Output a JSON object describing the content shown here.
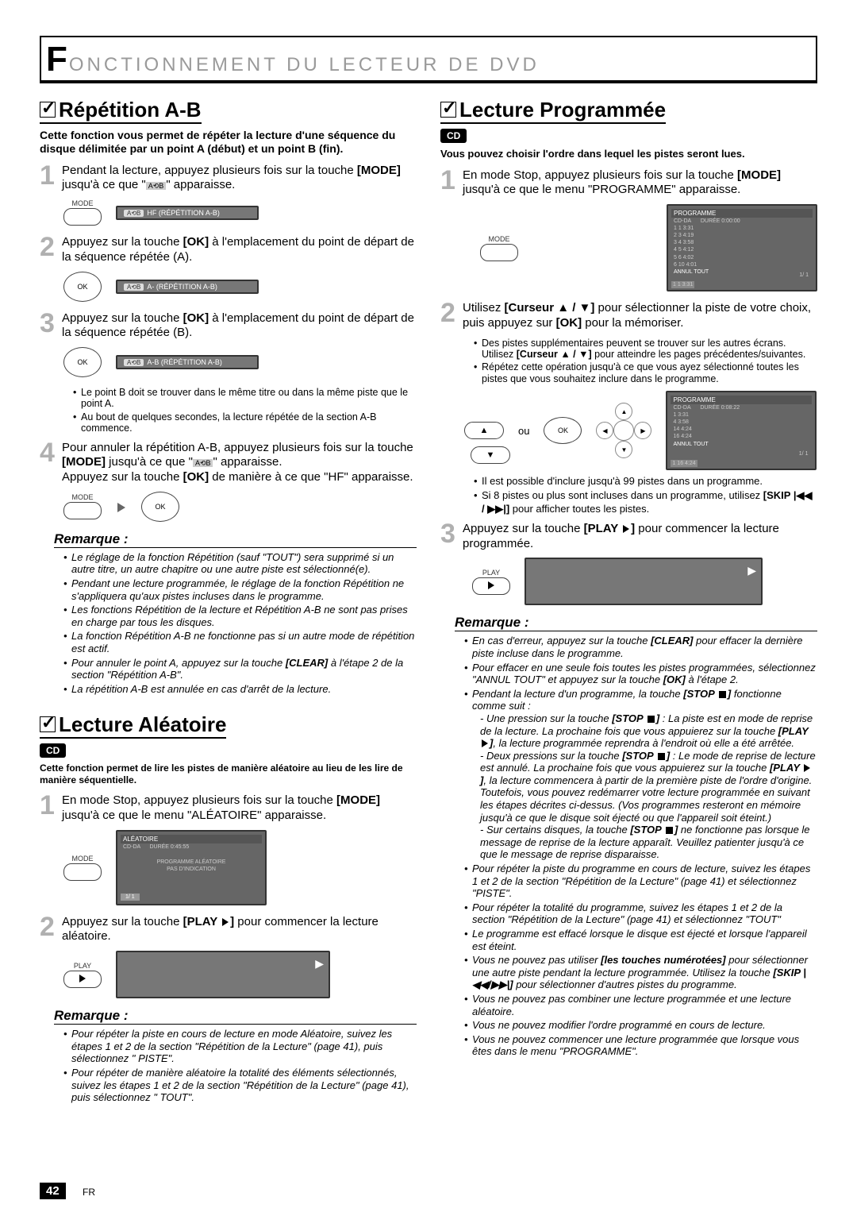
{
  "header": {
    "big_letter": "F",
    "rest": "ONCTIONNEMENT DU LECTEUR DE DVD"
  },
  "left": {
    "sec1": {
      "title": "Répétition A-B",
      "intro": "Cette fonction vous permet de répéter la lecture d'une séquence du disque délimitée par un point A (début) et un point B (fin).",
      "step1": "Pendant la lecture, appuyez plusieurs fois sur la touche [MODE] jusqu'à ce que \" \" apparaisse.",
      "mode_label": "MODE",
      "osd1": "HF  (RÉPÉTITION A-B)",
      "step2": "Appuyez sur la touche [OK] à l'emplacement du point de départ de la séquence répétée (A).",
      "ok_label": "OK",
      "osd2": "A-  (RÉPÉTITION A-B)",
      "step3": "Appuyez sur la touche [OK] à l'emplacement du point de départ de la séquence répétée (B).",
      "osd3": "A-B  (RÉPÉTITION A-B)",
      "b1": "Le point B doit se trouver dans le même titre ou dans la même piste que le point A.",
      "b2": "Au bout de quelques secondes, la lecture répétée de la section A-B commence.",
      "step4a": "Pour annuler la répétition A-B, appuyez plusieurs fois sur la touche [MODE] jusqu'à ce que \" \" apparaisse.",
      "step4b": "Appuyez sur la touche [OK] de manière à ce que \"HF\" apparaisse.",
      "remarque_title": "Remarque :",
      "r1": "Le réglage de la fonction Répétition (sauf \"TOUT\") sera supprimé si un autre titre, un autre chapitre ou une autre piste est sélectionné(e).",
      "r2": "Pendant une lecture programmée, le réglage de la fonction Répétition ne s'appliquera qu'aux pistes incluses dans le programme.",
      "r3": "Les fonctions Répétition de la lecture et Répétition A-B ne sont pas prises en charge par tous les disques.",
      "r4": "La fonction Répétition A-B ne fonctionne pas si un autre mode de répétition est actif.",
      "r5": "Pour annuler le point A, appuyez sur la touche [CLEAR] à l'étape 2 de la section \"Répétition A-B\".",
      "r6": "La répétition A-B est annulée en cas d'arrêt de la lecture."
    },
    "sec2": {
      "title": "Lecture Aléatoire",
      "cd": "CD",
      "intro": "Cette fonction permet de lire les pistes de manière aléatoire au lieu de les lire de manière séquentielle.",
      "step1": "En mode Stop, appuyez plusieurs fois sur la touche [MODE] jusqu'à ce que le menu \"ALÉATOIRE\" apparaisse.",
      "screen_title": "ALÉATOIRE",
      "screen_l1": "CD-DA",
      "screen_l2": "DURÉE 0:45:55",
      "screen_l3": "PROGRAMME ALÉATOIRE",
      "screen_l4": "PAS D'INDICATION",
      "screen_btn": "1/ 1",
      "step2": "Appuyez sur la touche [PLAY ▶] pour commencer la lecture aléatoire.",
      "play_label": "PLAY",
      "remarque_title": "Remarque :",
      "r1": "Pour répéter la piste en cours de lecture en mode Aléatoire, suivez les étapes 1 et 2 de la section \"Répétition de la Lecture\" (page 41), puis sélectionnez \" PISTE\".",
      "r2": "Pour répéter de manière aléatoire la totalité des éléments sélectionnés, suivez les étapes 1 et 2 de la section \"Répétition de la Lecture\" (page 41), puis sélectionnez \" TOUT\"."
    }
  },
  "right": {
    "sec1": {
      "title": "Lecture Programmée",
      "cd": "CD",
      "intro": "Vous pouvez choisir l'ordre dans lequel les pistes seront lues.",
      "step1": "En mode Stop, appuyez plusieurs fois sur la touche [MODE] jusqu'à ce que le menu \"PROGRAMME\" apparaisse.",
      "mode_label": "MODE",
      "prog_title": "PROGRAMME",
      "prog_h1": "CD-DA",
      "prog_h2": "DURÉE  0:00:00",
      "prog_rows": [
        "1  1  3:31",
        "2  3  4:19",
        "3  4  3:58",
        "4  5  4:12",
        "5  6  4:02",
        "6  10  4:01"
      ],
      "prog_foot1": "ANNUL TOUT",
      "prog_foot2": "1/ 1",
      "prog_foot3": "1  1  3:31",
      "step2": "Utilisez [Curseur ▲ / ▼] pour sélectionner la piste de votre choix, puis appuyez sur [OK] pour la mémoriser.",
      "b1": "Des pistes supplémentaires peuvent se trouver sur les autres écrans. Utilisez [Curseur ▲ / ▼] pour atteindre les pages précédentes/suivantes.",
      "b2": "Répétez cette opération jusqu'à ce que vous ayez sélectionné toutes les pistes que vous souhaitez inclure dans le programme.",
      "ou": "ou",
      "ok": "OK",
      "prog2_h2": "DURÉE  0:08:22",
      "prog2_rows": [
        "1  3:31",
        "4  3:58",
        "14  4:24",
        "16  4:24"
      ],
      "prog2_foot": "1  16  4:24",
      "b3": "Il est possible d'inclure jusqu'à 99 pistes dans un programme.",
      "b4": "Si 8 pistes ou plus sont incluses dans un programme, utilisez [SKIP |◀◀ / ▶▶|] pour afficher toutes les pistes.",
      "step3": "Appuyez sur la touche [PLAY ▶] pour commencer la lecture programmée.",
      "play_label": "PLAY",
      "remarque_title": "Remarque :",
      "r1": "En cas d'erreur, appuyez sur la touche [CLEAR] pour effacer la dernière piste incluse dans le programme.",
      "r2": "Pour effacer en une seule fois toutes les pistes programmées, sélectionnez \"ANNUL TOUT\" et appuyez sur la touche [OK] à l'étape 2.",
      "r3": "Pendant la lecture d'un programme, la touche [STOP ■] fonctionne comme suit :",
      "r3a": "- Une pression sur la touche [STOP ■] : La piste est en mode de reprise de la lecture. La prochaine fois que vous appuierez sur la touche [PLAY ▶], la lecture programmée reprendra à l'endroit où elle a été arrêtée.",
      "r3b": "- Deux pressions sur la touche [STOP ■] : Le mode de reprise de lecture est annulé. La prochaine fois que vous appuierez sur la touche [PLAY ▶], la lecture commencera à partir de la première piste de l'ordre d'origine. Toutefois, vous pouvez redémarrer votre lecture programmée en suivant les étapes décrites ci-dessus. (Vos programmes resteront en mémoire jusqu'à ce que le disque soit éjecté ou que l'appareil soit éteint.)",
      "r3c": "- Sur certains disques, la touche [STOP ■] ne fonctionne pas lorsque le message de reprise de la lecture apparaît. Veuillez patienter jusqu'à ce que le message de reprise disparaisse.",
      "r4": "Pour répéter la piste du programme en cours de lecture, suivez les étapes 1 et 2 de la section \"Répétition de la Lecture\" (page 41) et sélectionnez \"PISTE\".",
      "r5": "Pour répéter la totalité du programme, suivez les étapes 1 et 2 de la section \"Répétition de la Lecture\" (page 41) et sélectionnez \"TOUT\"",
      "r6": "Le programme est effacé lorsque le disque est éjecté et lorsque l'appareil est éteint.",
      "r7": "Vous ne pouvez pas utiliser [les touches numérotées] pour sélectionner une autre piste pendant la lecture programmée. Utilisez la touche [SKIP |◀◀/▶▶|] pour sélectionner d'autres pistes du programme.",
      "r8": "Vous ne pouvez pas combiner une lecture programmée et une lecture aléatoire.",
      "r9": "Vous ne pouvez modifier l'ordre programmé en cours de lecture.",
      "r10": "Vous ne pouvez commencer une lecture programmée que lorsque vous êtes dans le menu \"PROGRAMME\"."
    }
  },
  "page_number": "42",
  "page_lang": "FR"
}
